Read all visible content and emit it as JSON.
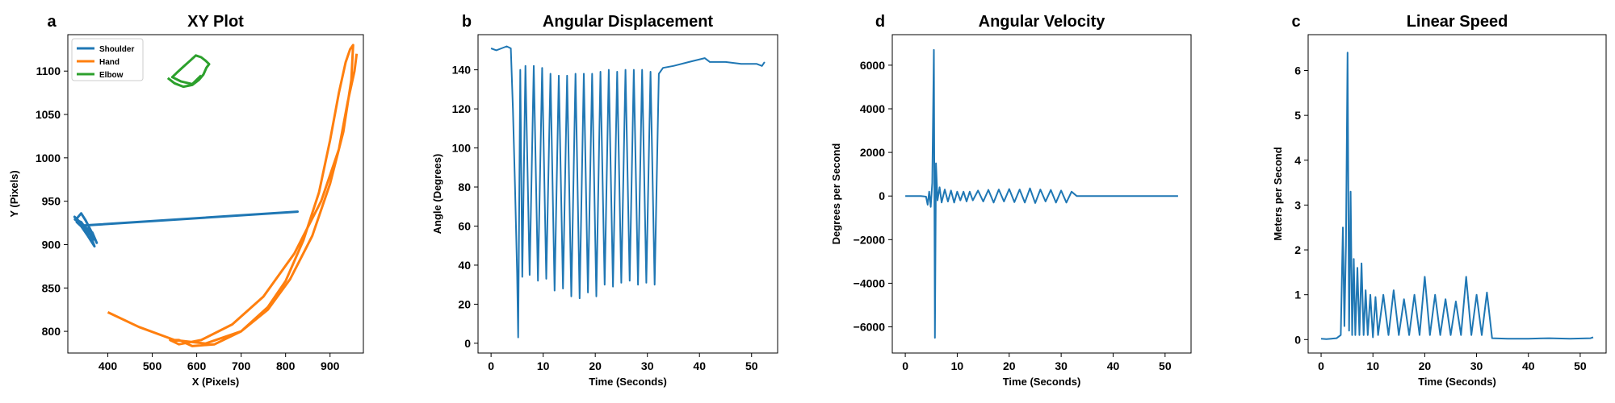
{
  "figure": {
    "panels": [
      {
        "letter": "a",
        "title": "XY Plot"
      },
      {
        "letter": "b",
        "title": "Angular Displacement"
      },
      {
        "letter": "d",
        "title": "Angular Velocity"
      },
      {
        "letter": "c",
        "title": "Linear Speed"
      }
    ]
  },
  "chart_data": [
    {
      "type": "line",
      "panel": "a",
      "title": "XY Plot",
      "xlabel": "X (Pixels)",
      "ylabel": "Y (Pixels)",
      "xlim": [
        310,
        975
      ],
      "ylim": [
        775,
        1142
      ],
      "xticks": [
        400,
        500,
        600,
        700,
        800,
        900
      ],
      "yticks": [
        800,
        850,
        900,
        950,
        1000,
        1050,
        1100
      ],
      "legend": {
        "placement": "upper-left"
      },
      "series": [
        {
          "name": "Shoulder",
          "color": "#1f77b4",
          "x": [
            330,
            340,
            350,
            360,
            370,
            375,
            365,
            345,
            325,
            335,
            355,
            370,
            360,
            340,
            326,
            345,
            827,
            345,
            330,
            355,
            372,
            368
          ],
          "y": [
            930,
            936,
            928,
            918,
            908,
            902,
            914,
            922,
            932,
            925,
            910,
            898,
            912,
            926,
            929,
            922,
            938,
            922,
            926,
            914,
            905,
            910
          ]
        },
        {
          "name": "Hand",
          "color": "#ff7f0e",
          "x": [
            400,
            470,
            550,
            620,
            700,
            760,
            800,
            840,
            875,
            900,
            920,
            935,
            945,
            952,
            948,
            930,
            900,
            860,
            810,
            760,
            700,
            640,
            590,
            560,
            540,
            560,
            610,
            680,
            750,
            820,
            880,
            920,
            940,
            955,
            960
          ],
          "y": [
            822,
            805,
            790,
            786,
            800,
            828,
            858,
            905,
            960,
            1020,
            1075,
            1110,
            1125,
            1130,
            1090,
            1030,
            970,
            910,
            860,
            825,
            800,
            785,
            783,
            790,
            790,
            785,
            790,
            808,
            840,
            890,
            950,
            1010,
            1065,
            1100,
            1120
          ]
        },
        {
          "name": "Elbow",
          "color": "#2ca02c",
          "x": [
            535,
            550,
            570,
            590,
            605,
            615,
            622,
            628,
            620,
            610,
            598,
            585,
            570,
            555,
            545,
            565,
            590,
            610
          ],
          "y": [
            1092,
            1086,
            1082,
            1084,
            1090,
            1096,
            1104,
            1108,
            1112,
            1116,
            1118,
            1112,
            1105,
            1098,
            1093,
            1088,
            1085,
            1095
          ]
        }
      ]
    },
    {
      "type": "line",
      "panel": "b",
      "title": "Angular Displacement",
      "xlabel": "Time (Seconds)",
      "ylabel": "Angle (Degrees)",
      "xlim": [
        -2.5,
        55
      ],
      "ylim": [
        -5,
        158
      ],
      "xticks": [
        0,
        10,
        20,
        30,
        40,
        50
      ],
      "yticks": [
        0,
        20,
        40,
        60,
        80,
        100,
        120,
        140
      ],
      "series": [
        {
          "name": "",
          "color": "#1f77b4",
          "x": [
            0,
            1,
            2,
            3,
            3.8,
            4.2,
            4.6,
            5.0,
            5.2,
            5.6,
            6.0,
            6.6,
            7.4,
            8.2,
            9.0,
            9.8,
            10.6,
            11.4,
            12.2,
            13.0,
            13.8,
            14.6,
            15.4,
            16.2,
            17.0,
            17.8,
            18.6,
            19.4,
            20.2,
            21.0,
            21.8,
            22.6,
            23.4,
            24.2,
            25.0,
            25.8,
            26.6,
            27.4,
            28.2,
            29.0,
            29.8,
            30.6,
            31.4,
            32.2,
            33,
            35,
            38,
            41,
            42,
            45,
            48,
            51,
            52,
            52.5
          ],
          "y": [
            151,
            150,
            151,
            152,
            151,
            120,
            80,
            36,
            3,
            140,
            34,
            142,
            35,
            142,
            32,
            141,
            33,
            138,
            27,
            137,
            28,
            137,
            24,
            138,
            23,
            138,
            26,
            138,
            24,
            139,
            30,
            140,
            29,
            139,
            31,
            140,
            32,
            140,
            30,
            140,
            31,
            139,
            30,
            138,
            141,
            142,
            144,
            146,
            144,
            144,
            143,
            143,
            142,
            144
          ]
        }
      ]
    },
    {
      "type": "line",
      "panel": "d",
      "title": "Angular Velocity",
      "xlabel": "Time (Seconds)",
      "ylabel": "Degrees per Second",
      "xlim": [
        -2.5,
        55
      ],
      "ylim": [
        -7200,
        7400
      ],
      "xticks": [
        0,
        10,
        20,
        30,
        40,
        50
      ],
      "yticks": [
        -6000,
        -4000,
        -2000,
        0,
        2000,
        4000,
        6000
      ],
      "series": [
        {
          "name": "",
          "color": "#1f77b4",
          "x": [
            0,
            1,
            2,
            3,
            4,
            4.3,
            4.6,
            4.9,
            5.2,
            5.5,
            5.7,
            5.9,
            6.2,
            6.6,
            7.0,
            7.6,
            8.2,
            8.8,
            9.4,
            10.0,
            10.6,
            11.2,
            11.8,
            12.4,
            13.0,
            14,
            15,
            16,
            17,
            18,
            19,
            20,
            21,
            22,
            23,
            24,
            25,
            26,
            27,
            28,
            29,
            30,
            31,
            32,
            33,
            36,
            40,
            44,
            48,
            52.5
          ],
          "y": [
            0,
            0,
            0,
            0,
            -30,
            -400,
            200,
            -500,
            600,
            6700,
            -6500,
            1500,
            -200,
            400,
            -300,
            300,
            -250,
            250,
            -300,
            200,
            -200,
            200,
            -250,
            200,
            -200,
            250,
            -250,
            280,
            -300,
            300,
            -250,
            320,
            -280,
            300,
            -300,
            350,
            -320,
            300,
            -250,
            280,
            -300,
            250,
            -300,
            200,
            0,
            0,
            0,
            0,
            0,
            0
          ]
        }
      ]
    },
    {
      "type": "line",
      "panel": "c",
      "title": "Linear Speed",
      "xlabel": "Time (Seconds)",
      "ylabel": "Meters per Second",
      "xlim": [
        -2.5,
        55
      ],
      "ylim": [
        -0.3,
        6.8
      ],
      "xticks": [
        0,
        10,
        20,
        30,
        40,
        50
      ],
      "yticks": [
        0,
        1,
        2,
        3,
        4,
        5,
        6
      ],
      "series": [
        {
          "name": "",
          "color": "#1f77b4",
          "x": [
            0,
            1,
            2,
            3,
            3.8,
            4.2,
            4.5,
            4.8,
            5.1,
            5.4,
            5.7,
            6.0,
            6.3,
            6.6,
            7.0,
            7.4,
            7.8,
            8.2,
            8.6,
            9.0,
            9.5,
            10.0,
            10.5,
            11,
            12,
            13,
            14,
            15,
            16,
            17,
            18,
            19,
            20,
            21,
            22,
            23,
            24,
            25,
            26,
            27,
            28,
            29,
            30,
            31,
            32,
            33,
            36,
            40,
            44,
            48,
            52,
            52.5
          ],
          "y": [
            0.02,
            0.01,
            0.02,
            0.03,
            0.1,
            2.5,
            0.3,
            2.1,
            6.4,
            0.2,
            3.3,
            0.1,
            1.8,
            0.1,
            1.6,
            0.1,
            1.7,
            0.1,
            1.1,
            0.1,
            1.0,
            0.05,
            0.95,
            0.1,
            1.0,
            0.1,
            1.1,
            0.1,
            0.9,
            0.1,
            1.0,
            0.1,
            1.4,
            0.1,
            1.0,
            0.1,
            0.9,
            0.1,
            0.85,
            0.1,
            1.4,
            0.1,
            1.0,
            0.1,
            1.05,
            0.03,
            0.02,
            0.02,
            0.03,
            0.02,
            0.03,
            0.05
          ]
        }
      ]
    }
  ]
}
